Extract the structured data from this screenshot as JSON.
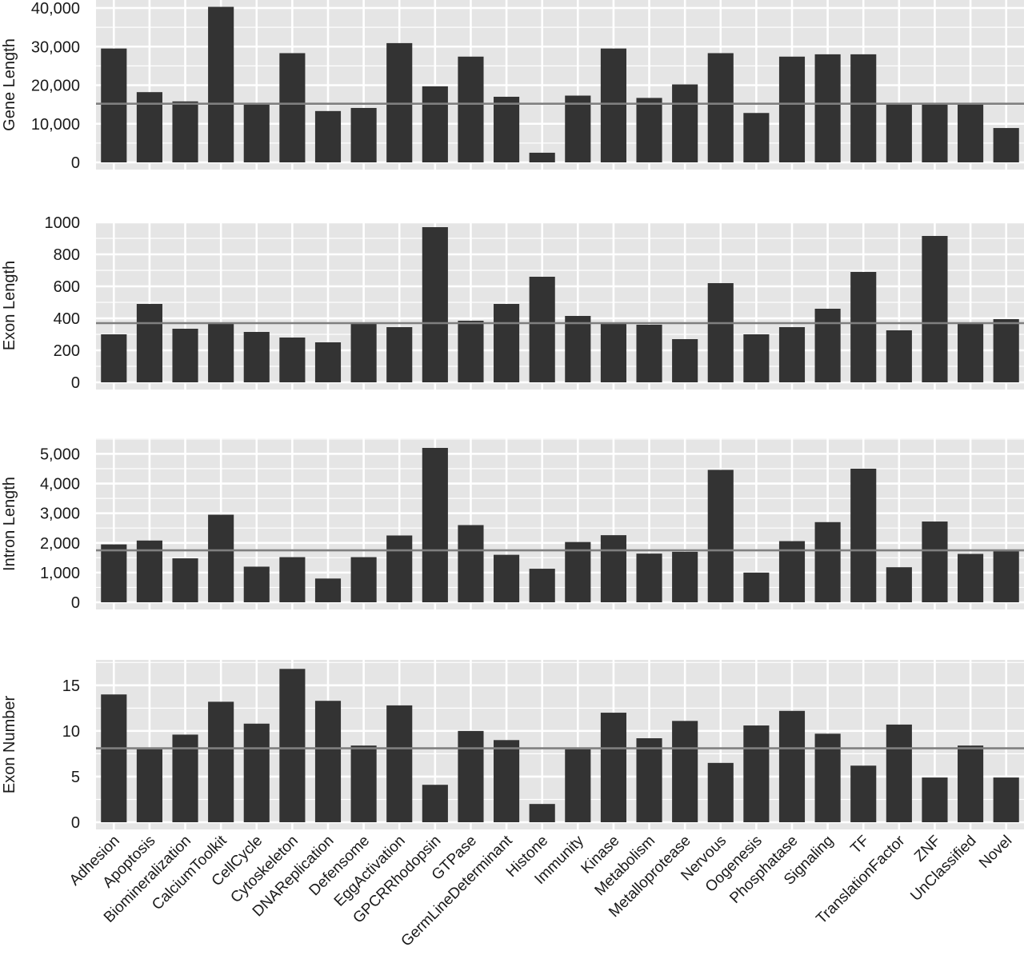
{
  "chart_data": {
    "type": "bar",
    "categories": [
      "Adhesion",
      "Apoptosis",
      "Biomineralization",
      "CalciumToolkit",
      "CellCycle",
      "Cytoskeleton",
      "DNAReplication",
      "Defensome",
      "EggActivation",
      "GPCRRhodopsin",
      "GTPase",
      "GermLineDeterminant",
      "Histone",
      "Immunity",
      "Kinase",
      "Metabolism",
      "Metalloprotease",
      "Nervous",
      "Oogenesis",
      "Phosphatase",
      "Signaling",
      "TF",
      "TranslationFactor",
      "ZNF",
      "UnClassified",
      "Novel"
    ],
    "panels": [
      {
        "ylabel": "Gene Length",
        "ylim": [
          0,
          40000
        ],
        "ticks": [
          0,
          10000,
          20000,
          30000,
          40000
        ],
        "tick_labels": [
          "0",
          "10,000",
          "20,000",
          "30,000",
          "40,000"
        ],
        "reference_line": 15200,
        "values": [
          29500,
          18200,
          15800,
          40300,
          15200,
          28300,
          13300,
          14100,
          30900,
          19700,
          27400,
          17000,
          2500,
          17300,
          29500,
          16700,
          20200,
          28300,
          12800,
          27400,
          28000,
          28000,
          15200,
          15000,
          15000,
          8900
        ]
      },
      {
        "ylabel": "Exon Length",
        "ylim": [
          0,
          1000
        ],
        "ticks": [
          0,
          200,
          400,
          600,
          800,
          1000
        ],
        "tick_labels": [
          "0",
          "200",
          "400",
          "600",
          "800",
          "1000"
        ],
        "reference_line": 370,
        "values": [
          300,
          490,
          335,
          365,
          315,
          280,
          250,
          365,
          345,
          970,
          385,
          490,
          660,
          415,
          370,
          360,
          270,
          620,
          300,
          345,
          460,
          690,
          325,
          915,
          365,
          395
        ]
      },
      {
        "ylabel": "Intron Length",
        "ylim": [
          0,
          5200
        ],
        "ticks": [
          0,
          1000,
          2000,
          3000,
          4000,
          5000
        ],
        "tick_labels": [
          "0",
          "1,000",
          "2,000",
          "3,000",
          "4,000",
          "5,000"
        ],
        "reference_line": 1750,
        "values": [
          1950,
          2080,
          1480,
          2950,
          1200,
          1520,
          800,
          1520,
          2250,
          5200,
          2600,
          1600,
          1130,
          2030,
          2260,
          1640,
          1700,
          4460,
          1000,
          2060,
          2700,
          4500,
          1180,
          2720,
          1630,
          1720
        ]
      },
      {
        "ylabel": "Exon Number",
        "ylim": [
          0,
          17
        ],
        "ticks": [
          0,
          5,
          10,
          15
        ],
        "tick_labels": [
          "0",
          "5",
          "10",
          "15"
        ],
        "reference_line": 8.1,
        "values": [
          14.0,
          8.0,
          9.6,
          13.2,
          10.8,
          16.8,
          13.3,
          8.4,
          12.8,
          4.1,
          10.0,
          9.0,
          2.0,
          8.0,
          12.0,
          9.2,
          11.1,
          6.5,
          10.6,
          12.2,
          9.7,
          6.2,
          10.7,
          4.9,
          8.4,
          4.9
        ]
      }
    ],
    "colors": {
      "panel_background": "#e5e5e5",
      "gridline": "#ffffff",
      "bar": "#333333",
      "reference_line": "#7f7f7f"
    },
    "grid": true
  }
}
